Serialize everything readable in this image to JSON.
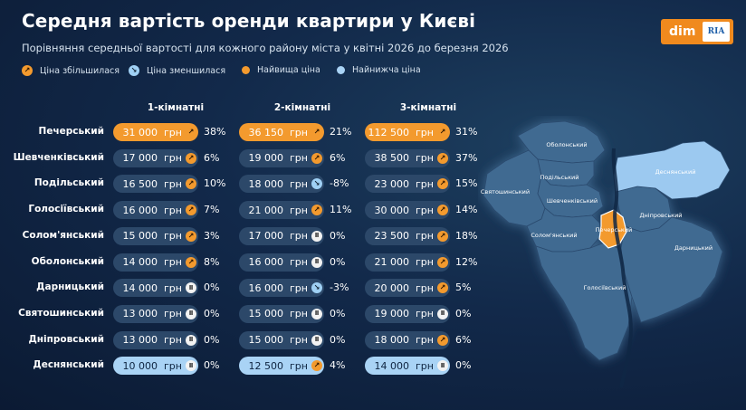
{
  "header": {
    "title": "Середня вартість оренди квартири у Києві",
    "subtitle": "Порівняння середньої вартості для кожного району міста у квітні 2026 до березня 2026"
  },
  "logo": {
    "left": "dim",
    "right": "RIA"
  },
  "legend": {
    "increase": "Ціна збільшилася",
    "decrease": "Ціна зменшилася",
    "highest": "Найвища ціна",
    "lowest": "Найнижча ціна"
  },
  "colors": {
    "increase": "#f39a2e",
    "decrease": "#9fd0f4",
    "highest": "#f39a2e",
    "lowest": "#a9d3f5",
    "pill": "#2c4869",
    "background": "#12294a"
  },
  "currency": "грн",
  "chart_data": {
    "type": "table",
    "columns": [
      "1-кімнатні",
      "2-кімнатні",
      "3-кімнатні"
    ],
    "rows": [
      {
        "district": "Печерський",
        "cells": [
          {
            "value": "31 000",
            "change": "38%",
            "trend": "up",
            "mark": "max"
          },
          {
            "value": "36 150",
            "change": "21%",
            "trend": "up",
            "mark": "max"
          },
          {
            "value": "112 500",
            "change": "31%",
            "trend": "up",
            "mark": "max"
          }
        ]
      },
      {
        "district": "Шевченківський",
        "cells": [
          {
            "value": "17 000",
            "change": "6%",
            "trend": "up",
            "mark": ""
          },
          {
            "value": "19 000",
            "change": "6%",
            "trend": "up",
            "mark": ""
          },
          {
            "value": "38 500",
            "change": "37%",
            "trend": "up",
            "mark": ""
          }
        ]
      },
      {
        "district": "Подільський",
        "cells": [
          {
            "value": "16 500",
            "change": "10%",
            "trend": "up",
            "mark": ""
          },
          {
            "value": "18 000",
            "change": "-8%",
            "trend": "down",
            "mark": ""
          },
          {
            "value": "23 000",
            "change": "15%",
            "trend": "up",
            "mark": ""
          }
        ]
      },
      {
        "district": "Голосіївський",
        "cells": [
          {
            "value": "16 000",
            "change": "7%",
            "trend": "up",
            "mark": ""
          },
          {
            "value": "21 000",
            "change": "11%",
            "trend": "up",
            "mark": ""
          },
          {
            "value": "30 000",
            "change": "14%",
            "trend": "up",
            "mark": ""
          }
        ]
      },
      {
        "district": "Солом'янський",
        "cells": [
          {
            "value": "15 000",
            "change": "3%",
            "trend": "up",
            "mark": ""
          },
          {
            "value": "17 000",
            "change": "0%",
            "trend": "flat",
            "mark": ""
          },
          {
            "value": "23 500",
            "change": "18%",
            "trend": "up",
            "mark": ""
          }
        ]
      },
      {
        "district": "Оболонський",
        "cells": [
          {
            "value": "14 000",
            "change": "8%",
            "trend": "up",
            "mark": ""
          },
          {
            "value": "16 000",
            "change": "0%",
            "trend": "flat",
            "mark": ""
          },
          {
            "value": "21 000",
            "change": "12%",
            "trend": "up",
            "mark": ""
          }
        ]
      },
      {
        "district": "Дарницький",
        "cells": [
          {
            "value": "14 000",
            "change": "0%",
            "trend": "flat",
            "mark": ""
          },
          {
            "value": "16 000",
            "change": "-3%",
            "trend": "down",
            "mark": ""
          },
          {
            "value": "20 000",
            "change": "5%",
            "trend": "up",
            "mark": ""
          }
        ]
      },
      {
        "district": "Святошинський",
        "cells": [
          {
            "value": "13 000",
            "change": "0%",
            "trend": "flat",
            "mark": ""
          },
          {
            "value": "15 000",
            "change": "0%",
            "trend": "flat",
            "mark": ""
          },
          {
            "value": "19 000",
            "change": "0%",
            "trend": "flat",
            "mark": ""
          }
        ]
      },
      {
        "district": "Дніпровський",
        "cells": [
          {
            "value": "13 000",
            "change": "0%",
            "trend": "flat",
            "mark": ""
          },
          {
            "value": "15 000",
            "change": "0%",
            "trend": "flat",
            "mark": ""
          },
          {
            "value": "18 000",
            "change": "6%",
            "trend": "up",
            "mark": ""
          }
        ]
      },
      {
        "district": "Деснянський",
        "cells": [
          {
            "value": "10 000",
            "change": "0%",
            "trend": "flat",
            "mark": "min"
          },
          {
            "value": "12 500",
            "change": "4%",
            "trend": "up",
            "mark": "min"
          },
          {
            "value": "14 000",
            "change": "0%",
            "trend": "flat",
            "mark": "min"
          }
        ]
      }
    ]
  },
  "map": {
    "labels": [
      "Оболонський",
      "Подільський",
      "Деснянський",
      "Святошинський",
      "Шевченківський",
      "Дніпровський",
      "Печерський",
      "Солом'янський",
      "Дарницький",
      "Голосіївський"
    ],
    "highlight_highest": "Печерський",
    "highlight_lowest": "Деснянський"
  }
}
